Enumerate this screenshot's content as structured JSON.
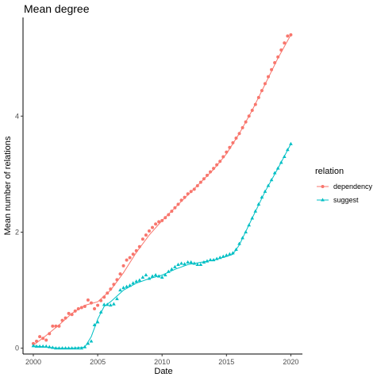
{
  "chart_data": {
    "type": "scatter",
    "title": "Mean degree",
    "xlabel": "Date",
    "ylabel": "Mean number of relations",
    "xlim": [
      1999.2,
      2020.9
    ],
    "ylim": [
      -0.1,
      5.7
    ],
    "x_ticks": [
      2000,
      2005,
      2010,
      2015,
      2020
    ],
    "x_tick_labels": [
      "2000",
      "2005",
      "2010",
      "2015",
      "2020"
    ],
    "y_ticks": [
      0,
      2,
      4
    ],
    "y_tick_labels": [
      "0",
      "2",
      "4"
    ],
    "grid": false,
    "legend": {
      "title": "relation",
      "placement": "right"
    },
    "series": [
      {
        "name": "dependency",
        "color": "#F8766D",
        "marker": "circle",
        "points": [
          [
            2000.0,
            0.08
          ],
          [
            2000.25,
            0.12
          ],
          [
            2000.5,
            0.2
          ],
          [
            2000.75,
            0.17
          ],
          [
            2001.0,
            0.14
          ],
          [
            2001.25,
            0.25
          ],
          [
            2001.5,
            0.38
          ],
          [
            2001.75,
            0.38
          ],
          [
            2002.0,
            0.38
          ],
          [
            2002.25,
            0.48
          ],
          [
            2002.5,
            0.52
          ],
          [
            2002.75,
            0.6
          ],
          [
            2003.0,
            0.58
          ],
          [
            2003.25,
            0.64
          ],
          [
            2003.5,
            0.68
          ],
          [
            2003.75,
            0.7
          ],
          [
            2004.0,
            0.72
          ],
          [
            2004.25,
            0.83
          ],
          [
            2004.5,
            0.78
          ],
          [
            2004.75,
            0.68
          ],
          [
            2005.0,
            0.74
          ],
          [
            2005.25,
            0.82
          ],
          [
            2005.5,
            0.88
          ],
          [
            2005.75,
            0.95
          ],
          [
            2006.0,
            1.02
          ],
          [
            2006.25,
            1.1
          ],
          [
            2006.5,
            1.18
          ],
          [
            2006.75,
            1.28
          ],
          [
            2007.0,
            1.42
          ],
          [
            2007.25,
            1.52
          ],
          [
            2007.5,
            1.56
          ],
          [
            2007.75,
            1.62
          ],
          [
            2008.0,
            1.68
          ],
          [
            2008.25,
            1.75
          ],
          [
            2008.5,
            1.88
          ],
          [
            2008.75,
            1.95
          ],
          [
            2009.0,
            2.02
          ],
          [
            2009.25,
            2.08
          ],
          [
            2009.5,
            2.14
          ],
          [
            2009.75,
            2.18
          ],
          [
            2010.0,
            2.2
          ],
          [
            2010.25,
            2.25
          ],
          [
            2010.5,
            2.3
          ],
          [
            2010.75,
            2.36
          ],
          [
            2011.0,
            2.42
          ],
          [
            2011.25,
            2.48
          ],
          [
            2011.5,
            2.55
          ],
          [
            2011.75,
            2.6
          ],
          [
            2012.0,
            2.66
          ],
          [
            2012.25,
            2.7
          ],
          [
            2012.5,
            2.74
          ],
          [
            2012.75,
            2.8
          ],
          [
            2013.0,
            2.86
          ],
          [
            2013.25,
            2.92
          ],
          [
            2013.5,
            2.98
          ],
          [
            2013.75,
            3.04
          ],
          [
            2014.0,
            3.1
          ],
          [
            2014.25,
            3.16
          ],
          [
            2014.5,
            3.22
          ],
          [
            2014.75,
            3.3
          ],
          [
            2015.0,
            3.38
          ],
          [
            2015.25,
            3.46
          ],
          [
            2015.5,
            3.54
          ],
          [
            2015.75,
            3.62
          ],
          [
            2016.0,
            3.7
          ],
          [
            2016.25,
            3.8
          ],
          [
            2016.5,
            3.9
          ],
          [
            2016.75,
            4.0
          ],
          [
            2017.0,
            4.1
          ],
          [
            2017.25,
            4.2
          ],
          [
            2017.5,
            4.32
          ],
          [
            2017.75,
            4.44
          ],
          [
            2018.0,
            4.56
          ],
          [
            2018.25,
            4.68
          ],
          [
            2018.5,
            4.8
          ],
          [
            2018.75,
            4.92
          ],
          [
            2019.0,
            5.02
          ],
          [
            2019.25,
            5.14
          ],
          [
            2019.5,
            5.26
          ],
          [
            2019.75,
            5.38
          ],
          [
            2020.0,
            5.4
          ]
        ],
        "trend": [
          [
            2000.0,
            0.05
          ],
          [
            2001.0,
            0.22
          ],
          [
            2002.0,
            0.4
          ],
          [
            2003.0,
            0.6
          ],
          [
            2004.0,
            0.74
          ],
          [
            2005.0,
            0.8
          ],
          [
            2006.0,
            1.0
          ],
          [
            2007.0,
            1.3
          ],
          [
            2008.0,
            1.65
          ],
          [
            2009.0,
            1.95
          ],
          [
            2010.0,
            2.2
          ],
          [
            2011.0,
            2.42
          ],
          [
            2012.0,
            2.64
          ],
          [
            2013.0,
            2.86
          ],
          [
            2014.0,
            3.08
          ],
          [
            2015.0,
            3.35
          ],
          [
            2016.0,
            3.7
          ],
          [
            2017.0,
            4.1
          ],
          [
            2018.0,
            4.55
          ],
          [
            2019.0,
            5.0
          ],
          [
            2020.0,
            5.4
          ]
        ]
      },
      {
        "name": "suggest",
        "color": "#00BFC4",
        "marker": "triangle",
        "points": [
          [
            2000.0,
            0.04
          ],
          [
            2000.25,
            0.03
          ],
          [
            2000.5,
            0.03
          ],
          [
            2000.75,
            0.03
          ],
          [
            2001.0,
            0.03
          ],
          [
            2001.25,
            0.02
          ],
          [
            2001.5,
            0.01
          ],
          [
            2001.75,
            0.0
          ],
          [
            2002.0,
            0.0
          ],
          [
            2002.25,
            0.0
          ],
          [
            2002.5,
            0.0
          ],
          [
            2002.75,
            0.0
          ],
          [
            2003.0,
            0.0
          ],
          [
            2003.25,
            0.0
          ],
          [
            2003.5,
            0.0
          ],
          [
            2003.75,
            0.0
          ],
          [
            2004.0,
            0.02
          ],
          [
            2004.25,
            0.08
          ],
          [
            2004.5,
            0.12
          ],
          [
            2004.75,
            0.4
          ],
          [
            2005.0,
            0.45
          ],
          [
            2005.25,
            0.62
          ],
          [
            2005.5,
            0.75
          ],
          [
            2005.75,
            0.75
          ],
          [
            2006.0,
            0.74
          ],
          [
            2006.25,
            0.76
          ],
          [
            2006.5,
            0.85
          ],
          [
            2006.75,
            1.0
          ],
          [
            2007.0,
            1.04
          ],
          [
            2007.25,
            1.06
          ],
          [
            2007.5,
            1.08
          ],
          [
            2007.75,
            1.12
          ],
          [
            2008.0,
            1.15
          ],
          [
            2008.25,
            1.17
          ],
          [
            2008.5,
            1.22
          ],
          [
            2008.75,
            1.26
          ],
          [
            2009.0,
            1.2
          ],
          [
            2009.25,
            1.24
          ],
          [
            2009.5,
            1.26
          ],
          [
            2009.75,
            1.24
          ],
          [
            2010.0,
            1.22
          ],
          [
            2010.25,
            1.26
          ],
          [
            2010.5,
            1.32
          ],
          [
            2010.75,
            1.36
          ],
          [
            2011.0,
            1.4
          ],
          [
            2011.25,
            1.44
          ],
          [
            2011.5,
            1.46
          ],
          [
            2011.75,
            1.45
          ],
          [
            2012.0,
            1.48
          ],
          [
            2012.25,
            1.48
          ],
          [
            2012.5,
            1.46
          ],
          [
            2012.75,
            1.44
          ],
          [
            2013.0,
            1.44
          ],
          [
            2013.25,
            1.48
          ],
          [
            2013.5,
            1.5
          ],
          [
            2013.75,
            1.52
          ],
          [
            2014.0,
            1.52
          ],
          [
            2014.25,
            1.54
          ],
          [
            2014.5,
            1.56
          ],
          [
            2014.75,
            1.58
          ],
          [
            2015.0,
            1.6
          ],
          [
            2015.25,
            1.62
          ],
          [
            2015.5,
            1.64
          ],
          [
            2015.75,
            1.7
          ],
          [
            2016.0,
            1.8
          ],
          [
            2016.25,
            1.9
          ],
          [
            2016.5,
            2.0
          ],
          [
            2016.75,
            2.12
          ],
          [
            2017.0,
            2.24
          ],
          [
            2017.25,
            2.36
          ],
          [
            2017.5,
            2.48
          ],
          [
            2017.75,
            2.6
          ],
          [
            2018.0,
            2.7
          ],
          [
            2018.25,
            2.8
          ],
          [
            2018.5,
            2.9
          ],
          [
            2018.75,
            3.02
          ],
          [
            2019.0,
            3.1
          ],
          [
            2019.25,
            3.2
          ],
          [
            2019.5,
            3.3
          ],
          [
            2019.75,
            3.42
          ],
          [
            2020.0,
            3.52
          ]
        ],
        "trend": [
          [
            2000.0,
            0.04
          ],
          [
            2001.0,
            0.02
          ],
          [
            2002.0,
            0.0
          ],
          [
            2003.0,
            0.0
          ],
          [
            2004.0,
            0.02
          ],
          [
            2004.5,
            0.2
          ],
          [
            2005.0,
            0.5
          ],
          [
            2005.5,
            0.72
          ],
          [
            2006.0,
            0.8
          ],
          [
            2007.0,
            1.0
          ],
          [
            2008.0,
            1.12
          ],
          [
            2009.0,
            1.2
          ],
          [
            2010.0,
            1.26
          ],
          [
            2011.0,
            1.36
          ],
          [
            2012.0,
            1.44
          ],
          [
            2013.0,
            1.48
          ],
          [
            2014.0,
            1.52
          ],
          [
            2015.0,
            1.58
          ],
          [
            2015.5,
            1.62
          ],
          [
            2016.0,
            1.78
          ],
          [
            2017.0,
            2.24
          ],
          [
            2018.0,
            2.7
          ],
          [
            2019.0,
            3.1
          ],
          [
            2020.0,
            3.52
          ]
        ]
      }
    ]
  }
}
